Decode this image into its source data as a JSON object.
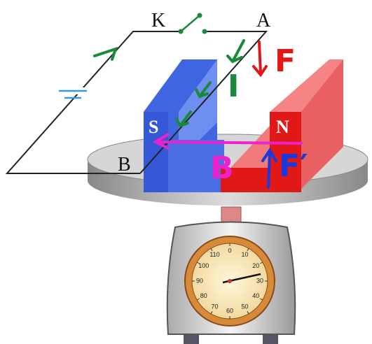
{
  "labels": {
    "switch": "K",
    "corner_a": "A",
    "corner_b": "B",
    "pole_s": "S",
    "pole_n": "N"
  },
  "annotations": {
    "current": "I",
    "force": "F",
    "field": "B",
    "reaction_force": "F′"
  },
  "dial": {
    "numbers": [
      "0",
      "10",
      "20",
      "30",
      "40",
      "50",
      "60",
      "70",
      "80",
      "90",
      "100",
      "110"
    ]
  }
}
